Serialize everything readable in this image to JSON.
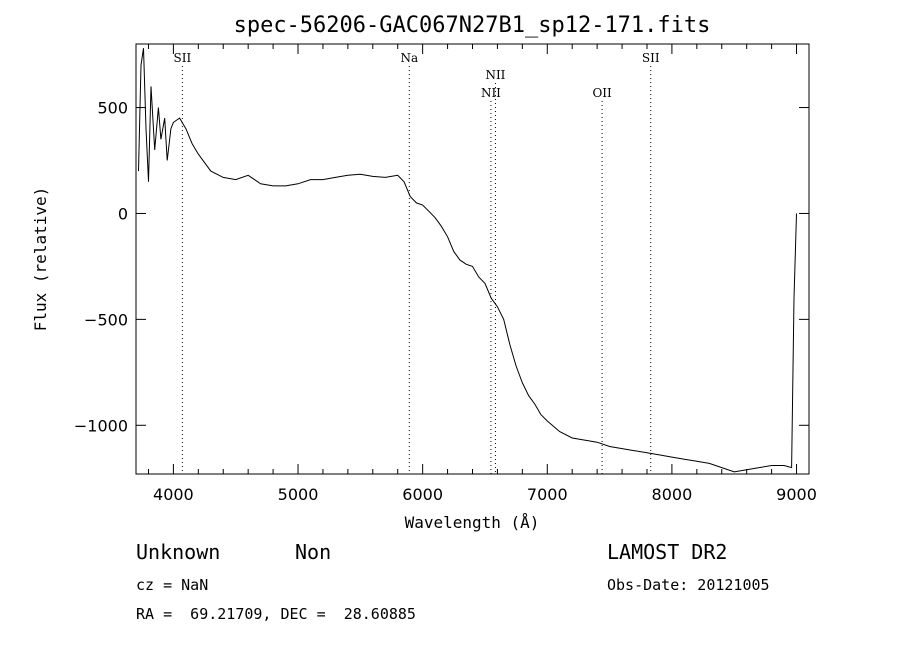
{
  "chart_data": {
    "type": "line",
    "title": "spec-56206-GAC067N27B1_sp12-171.fits",
    "xlabel": "Wavelength (Å)",
    "ylabel": "Flux (relative)",
    "xlim": [
      3700,
      9100
    ],
    "ylim": [
      -1230,
      800
    ],
    "x_ticks": [
      4000,
      5000,
      6000,
      7000,
      8000,
      9000
    ],
    "x_tick_labels": [
      "4000",
      "5000",
      "6000",
      "7000",
      "8000",
      "9000"
    ],
    "y_ticks": [
      500,
      0,
      -500,
      -1000
    ],
    "y_tick_labels": [
      "500",
      "0",
      "−500",
      "−1000"
    ],
    "series": [
      {
        "name": "spectrum",
        "x": [
          3720,
          3740,
          3760,
          3780,
          3800,
          3820,
          3850,
          3880,
          3900,
          3930,
          3950,
          3980,
          4000,
          4050,
          4100,
          4150,
          4200,
          4300,
          4400,
          4500,
          4600,
          4700,
          4800,
          4900,
          5000,
          5100,
          5200,
          5300,
          5400,
          5500,
          5600,
          5700,
          5800,
          5850,
          5900,
          5950,
          6000,
          6050,
          6100,
          6150,
          6200,
          6250,
          6300,
          6350,
          6400,
          6450,
          6500,
          6550,
          6600,
          6650,
          6700,
          6750,
          6800,
          6850,
          6900,
          6950,
          7000,
          7100,
          7200,
          7300,
          7400,
          7500,
          7600,
          7700,
          7800,
          7900,
          8000,
          8100,
          8200,
          8300,
          8400,
          8500,
          8600,
          8700,
          8800,
          8900,
          8960,
          8980,
          9000
        ],
        "y": [
          200,
          700,
          780,
          400,
          150,
          600,
          300,
          500,
          350,
          450,
          250,
          400,
          430,
          450,
          400,
          330,
          280,
          200,
          170,
          160,
          180,
          140,
          130,
          130,
          140,
          160,
          160,
          170,
          180,
          185,
          175,
          170,
          180,
          150,
          80,
          50,
          40,
          10,
          -20,
          -60,
          -110,
          -180,
          -220,
          -240,
          -250,
          -300,
          -330,
          -400,
          -440,
          -500,
          -620,
          -720,
          -800,
          -860,
          -900,
          -950,
          -980,
          -1030,
          -1060,
          -1070,
          -1080,
          -1100,
          -1110,
          -1120,
          -1130,
          -1140,
          -1150,
          -1160,
          -1170,
          -1180,
          -1200,
          -1220,
          -1210,
          -1200,
          -1190,
          -1190,
          -1200,
          -400,
          0
        ]
      }
    ],
    "line_marks": [
      {
        "label": "SII",
        "x": 4072,
        "level": 0
      },
      {
        "label": "Na",
        "x": 5893,
        "level": 0
      },
      {
        "label": "NII",
        "x": 6584,
        "level": 1
      },
      {
        "label": "NII",
        "x": 6548,
        "level": 2
      },
      {
        "label": "OII",
        "x": 7440,
        "level": 2
      },
      {
        "label": "SII",
        "x": 7830,
        "level": 0
      }
    ],
    "grid": false,
    "legend": "none"
  },
  "info": {
    "class": "Unknown",
    "subclass": "Non",
    "survey": "LAMOST DR2",
    "cz": "cz = NaN",
    "obs_date": "Obs-Date: 20121005",
    "coords": "RA =  69.21709, DEC =  28.60885"
  }
}
